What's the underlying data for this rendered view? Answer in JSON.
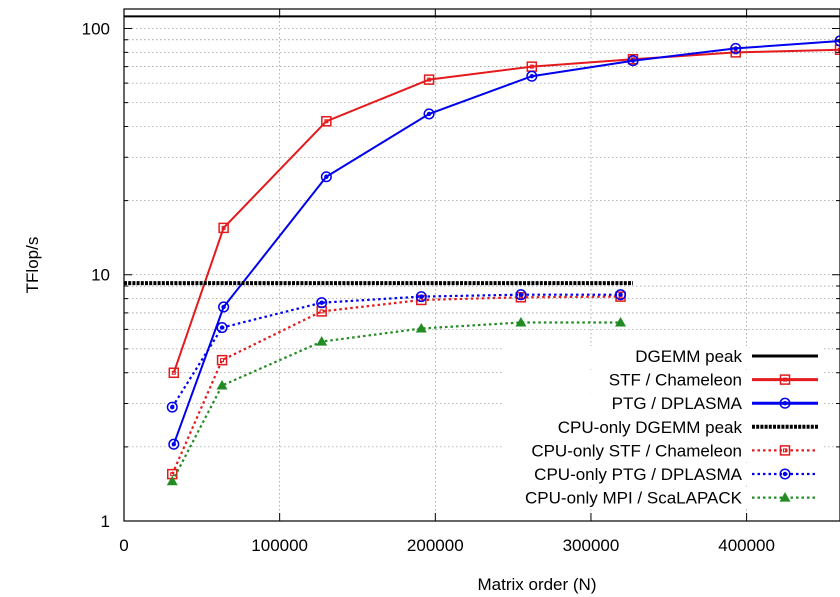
{
  "chart_data": {
    "type": "line",
    "title": "",
    "xlabel": "Matrix order (N)",
    "ylabel": "TFlop/s",
    "xlim": [
      0,
      460000
    ],
    "ylim": [
      1,
      120
    ],
    "yscale": "log",
    "x_ticks": [
      {
        "value": 0,
        "label": "0"
      },
      {
        "value": 100000,
        "label": "100000"
      },
      {
        "value": 200000,
        "label": "200000"
      },
      {
        "value": 300000,
        "label": "300000"
      },
      {
        "value": 400000,
        "label": "400000"
      }
    ],
    "y_ticks": [
      {
        "value": 1,
        "label": "1"
      },
      {
        "value": 10,
        "label": "10"
      },
      {
        "value": 100,
        "label": "100"
      }
    ],
    "grid": true,
    "legend_position": "bottom-right",
    "series": [
      {
        "name": "DGEMM peak",
        "color": "#000000",
        "style": "solid",
        "marker": "none",
        "x": [
          0,
          460000
        ],
        "y": [
          112,
          112
        ]
      },
      {
        "name": "STF / Chameleon",
        "color": "#e41a1c",
        "style": "solid",
        "marker": "square",
        "x": [
          32000,
          64000,
          130000,
          196000,
          262000,
          327000,
          393000,
          460000
        ],
        "y": [
          4.0,
          15.5,
          42,
          62,
          70,
          75,
          80,
          82
        ]
      },
      {
        "name": "PTG / DPLASMA",
        "color": "#0000ee",
        "style": "solid",
        "marker": "circle",
        "x": [
          32000,
          64000,
          130000,
          196000,
          262000,
          327000,
          393000,
          460000
        ],
        "y": [
          2.05,
          7.4,
          25,
          45,
          64,
          74,
          83,
          89
        ]
      },
      {
        "name": "CPU-only DGEMM peak",
        "color": "#000000",
        "style": "dashed",
        "marker": "none",
        "x": [
          0,
          327000
        ],
        "y": [
          9.25,
          9.25
        ]
      },
      {
        "name": "CPU-only STF / Chameleon",
        "color": "#e41a1c",
        "style": "dotted",
        "marker": "square",
        "x": [
          31000,
          63000,
          127000,
          191000,
          255000,
          319000
        ],
        "y": [
          1.55,
          4.5,
          7.1,
          7.9,
          8.1,
          8.15
        ]
      },
      {
        "name": "CPU-only PTG / DPLASMA",
        "color": "#0000ee",
        "style": "dotted",
        "marker": "circle",
        "x": [
          31000,
          63000,
          127000,
          191000,
          255000,
          319000
        ],
        "y": [
          2.9,
          6.1,
          7.7,
          8.15,
          8.3,
          8.3
        ]
      },
      {
        "name": "CPU-only MPI / ScaLAPACK",
        "color": "#228b22",
        "style": "dotted",
        "marker": "triangle",
        "x": [
          31000,
          63000,
          127000,
          191000,
          255000,
          319000
        ],
        "y": [
          1.45,
          3.55,
          5.35,
          6.05,
          6.4,
          6.4
        ]
      }
    ]
  }
}
